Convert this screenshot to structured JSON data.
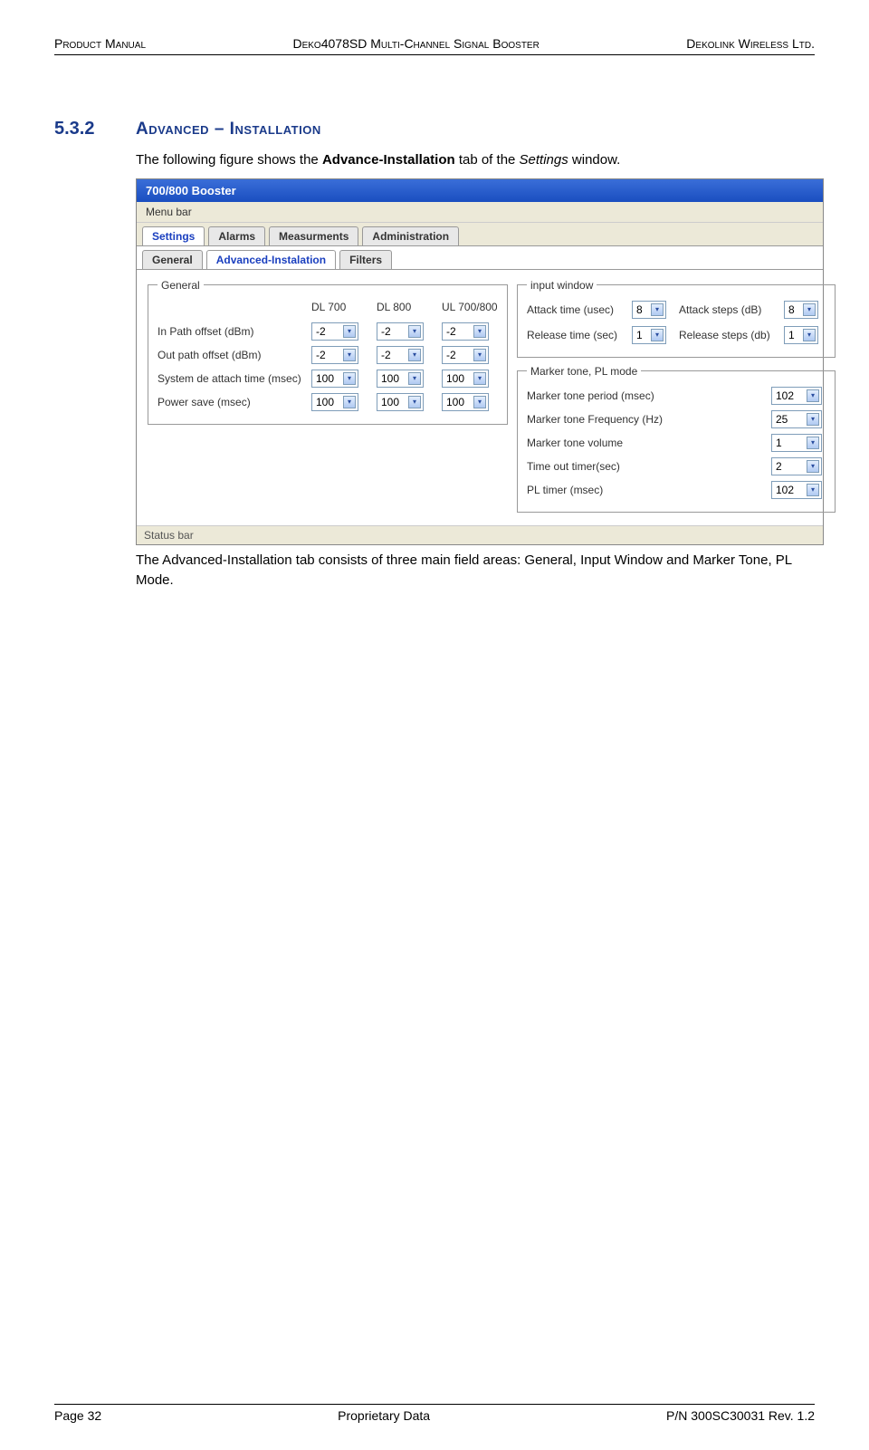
{
  "header": {
    "left": "Product Manual",
    "center": "Deko4078SD Multi-Channel Signal Booster",
    "right": "Dekolink Wireless Ltd."
  },
  "section": {
    "number": "5.3.2",
    "title": "Advanced – Installation"
  },
  "intro": "The following figure shows the Advance-Installation tab of the Settings window.",
  "outro": "The Advanced-Installation tab consists of three main field areas: General, Input Window and Marker Tone, PL Mode.",
  "window": {
    "title": "700/800 Booster",
    "menubar": "Menu bar",
    "statusbar": "Status bar",
    "tabs": {
      "settings": "Settings",
      "alarms": "Alarms",
      "measurements": "Measurments",
      "administration": "Administration"
    },
    "subtabs": {
      "general": "General",
      "advanced": "Advanced-Instalation",
      "filters": "Filters"
    },
    "general_panel": {
      "legend": "General",
      "cols": {
        "dl700": "DL 700",
        "dl800": "DL 800",
        "ul": "UL 700/800"
      },
      "rows": [
        {
          "label": "In Path offset   (dBm)",
          "dl700": "-2",
          "dl800": "-2",
          "ul": "-2"
        },
        {
          "label": "Out path offset (dBm)",
          "dl700": "-2",
          "dl800": "-2",
          "ul": "-2"
        },
        {
          "label": "System de attach time (msec)",
          "dl700": "100",
          "dl800": "100",
          "ul": "100"
        },
        {
          "label": "Power save (msec)",
          "dl700": "100",
          "dl800": "100",
          "ul": "100"
        }
      ]
    },
    "input_window": {
      "legend": "input window",
      "attack_time_label": "Attack time (usec)",
      "attack_time_value": "8",
      "attack_steps_label": "Attack steps (dB)",
      "attack_steps_value": "8",
      "release_time_label": "Release time (sec)",
      "release_time_value": "1",
      "release_steps_label": "Release steps (db)",
      "release_steps_value": "1"
    },
    "marker_panel": {
      "legend": "Marker tone, PL mode",
      "rows": [
        {
          "label": "Marker tone period (msec)",
          "value": "102"
        },
        {
          "label": "Marker tone Frequency (Hz)",
          "value": "25"
        },
        {
          "label": "Marker tone volume",
          "value": "1"
        },
        {
          "label": "Time out timer(sec)",
          "value": "2"
        },
        {
          "label": "PL timer (msec)",
          "value": "102"
        }
      ]
    }
  },
  "footer": {
    "left": "Page 32",
    "center": "Proprietary Data",
    "right": "P/N 300SC30031 Rev. 1.2"
  },
  "colors": {
    "heading": "#1a3a8a",
    "titlebar_start": "#3a6ed8",
    "titlebar_end": "#1a4ec0",
    "panel_bg": "#ece9d8",
    "select_border": "#7f9db9"
  }
}
